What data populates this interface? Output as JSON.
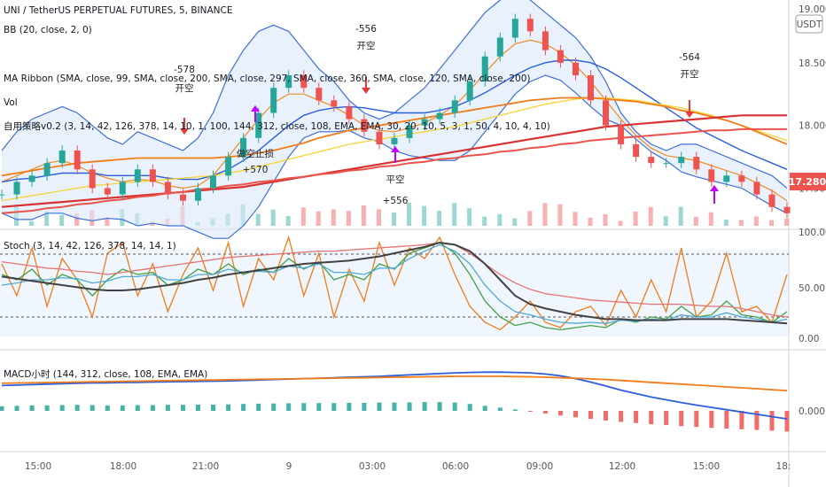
{
  "chart_data": [
    {
      "type": "line",
      "pane": "price",
      "title": "UNI / TetherUS PERPETUAL FUTURES, 5, BINANCE",
      "indicators": [
        "BB (20, close, 2, 0)",
        "MA Ribbon (SMA, close, 99, SMA, close, 200, SMA, close, 297, SMA, close, 360, SMA, close, 120, SMA, close, 200)",
        "Vol",
        "自用策略v0.2 (3, 14, 42, 126, 378, 14, 10, 1, 100, 144, 312, close, 108, EMA, EMA, 30, 20, 10, 5, 3, 1, 50, 4, 10, 4, 10)"
      ],
      "currency": "USDT",
      "ylim": [
        17.2,
        19.0
      ],
      "y_ticks": [
        17.5,
        18.0,
        18.5
      ],
      "y_top_label": "19.000",
      "last_price": "17.280",
      "x_ticks": [
        "15:00",
        "18:00",
        "21:00",
        "9",
        "03:00",
        "06:00",
        "09:00",
        "12:00",
        "15:00",
        "18:"
      ],
      "price_close": [
        17.45,
        17.55,
        17.6,
        17.7,
        17.8,
        17.65,
        17.5,
        17.45,
        17.55,
        17.65,
        17.55,
        17.45,
        17.4,
        17.5,
        17.6,
        17.75,
        17.9,
        18.1,
        18.3,
        18.4,
        18.3,
        18.2,
        18.15,
        18.05,
        17.95,
        17.85,
        17.9,
        18.0,
        18.05,
        18.1,
        18.2,
        18.35,
        18.55,
        18.7,
        18.85,
        18.75,
        18.6,
        18.5,
        18.4,
        18.2,
        18.0,
        17.85,
        17.75,
        17.7,
        17.7,
        17.75,
        17.65,
        17.55,
        17.6,
        17.55,
        17.45,
        17.35,
        17.3
      ],
      "series": [
        {
          "name": "BB upper",
          "values": [
            17.8,
            17.95,
            18.05,
            18.1,
            18.15,
            18.1,
            18.0,
            17.9,
            17.85,
            17.95,
            17.9,
            17.85,
            17.8,
            17.9,
            18.1,
            18.4,
            18.6,
            18.75,
            18.8,
            18.75,
            18.6,
            18.45,
            18.35,
            18.2,
            18.1,
            18.05,
            18.1,
            18.2,
            18.3,
            18.45,
            18.6,
            18.75,
            18.9,
            19.0,
            19.05,
            19.0,
            18.9,
            18.8,
            18.7,
            18.55,
            18.35,
            18.1,
            17.95,
            17.85,
            17.8,
            17.85,
            17.85,
            17.8,
            17.75,
            17.7,
            17.65,
            17.6,
            17.5
          ]
        },
        {
          "name": "BB basis",
          "values": [
            17.55,
            17.6,
            17.65,
            17.7,
            17.72,
            17.68,
            17.62,
            17.58,
            17.55,
            17.57,
            17.56,
            17.52,
            17.5,
            17.52,
            17.6,
            17.75,
            17.9,
            18.05,
            18.18,
            18.25,
            18.25,
            18.2,
            18.15,
            18.08,
            18.0,
            17.96,
            17.95,
            17.98,
            18.02,
            18.08,
            18.16,
            18.28,
            18.42,
            18.55,
            18.65,
            18.68,
            18.65,
            18.58,
            18.48,
            18.35,
            18.2,
            18.05,
            17.92,
            17.82,
            17.76,
            17.74,
            17.72,
            17.68,
            17.64,
            17.6,
            17.54,
            17.48,
            17.4
          ]
        },
        {
          "name": "BB lower",
          "values": [
            17.3,
            17.25,
            17.25,
            17.3,
            17.3,
            17.26,
            17.24,
            17.26,
            17.25,
            17.2,
            17.22,
            17.2,
            17.2,
            17.15,
            17.1,
            17.1,
            17.2,
            17.35,
            17.55,
            17.75,
            17.9,
            17.95,
            17.95,
            17.96,
            17.9,
            17.87,
            17.8,
            17.76,
            17.74,
            17.72,
            17.72,
            17.8,
            17.95,
            18.1,
            18.25,
            18.35,
            18.4,
            18.36,
            18.26,
            18.15,
            18.05,
            18.0,
            17.89,
            17.79,
            17.72,
            17.63,
            17.59,
            17.56,
            17.53,
            17.5,
            17.43,
            17.36,
            17.3
          ]
        },
        {
          "name": "SMA 99",
          "values": [
            17.55,
            17.57,
            17.58,
            17.6,
            17.62,
            17.62,
            17.62,
            17.6,
            17.6,
            17.6,
            17.6,
            17.58,
            17.57,
            17.57,
            17.6,
            17.65,
            17.72,
            17.8,
            17.9,
            18.0,
            18.08,
            18.12,
            18.14,
            18.15,
            18.14,
            18.12,
            18.1,
            18.1,
            18.1,
            18.12,
            18.15,
            18.2,
            18.26,
            18.33,
            18.4,
            18.46,
            18.5,
            18.52,
            18.52,
            18.5,
            18.45,
            18.38,
            18.3,
            18.22,
            18.14,
            18.06,
            17.98,
            17.92,
            17.86,
            17.8,
            17.75,
            17.7,
            17.65
          ]
        },
        {
          "name": "SMA 200",
          "values": [
            17.4,
            17.42,
            17.44,
            17.46,
            17.48,
            17.5,
            17.52,
            17.53,
            17.54,
            17.55,
            17.56,
            17.57,
            17.58,
            17.59,
            17.6,
            17.62,
            17.64,
            17.67,
            17.7,
            17.73,
            17.76,
            17.79,
            17.82,
            17.85,
            17.87,
            17.89,
            17.91,
            17.93,
            17.95,
            17.97,
            17.99,
            18.02,
            18.05,
            18.08,
            18.11,
            18.14,
            18.17,
            18.19,
            18.21,
            18.22,
            18.22,
            18.21,
            18.2,
            18.18,
            18.16,
            18.14,
            18.11,
            18.08,
            18.04,
            18.0,
            17.96,
            17.92,
            17.88
          ]
        },
        {
          "name": "SMA 297",
          "values": [
            17.6,
            17.62,
            17.64,
            17.66,
            17.68,
            17.7,
            17.71,
            17.72,
            17.73,
            17.74,
            17.74,
            17.74,
            17.74,
            17.74,
            17.74,
            17.75,
            17.76,
            17.78,
            17.8,
            17.83,
            17.86,
            17.9,
            17.93,
            17.96,
            17.98,
            18.0,
            18.02,
            18.04,
            18.06,
            18.08,
            18.1,
            18.12,
            18.14,
            18.16,
            18.18,
            18.2,
            18.21,
            18.22,
            18.22,
            18.22,
            18.21,
            18.2,
            18.19,
            18.17,
            18.15,
            18.12,
            18.1,
            18.07,
            18.04,
            18.0,
            17.95,
            17.9,
            17.85
          ]
        },
        {
          "name": "SMA 360",
          "values": [
            17.35,
            17.36,
            17.37,
            17.38,
            17.39,
            17.4,
            17.41,
            17.42,
            17.43,
            17.44,
            17.45,
            17.46,
            17.47,
            17.48,
            17.49,
            17.5,
            17.51,
            17.53,
            17.55,
            17.57,
            17.59,
            17.61,
            17.63,
            17.65,
            17.67,
            17.69,
            17.71,
            17.73,
            17.75,
            17.77,
            17.79,
            17.81,
            17.83,
            17.85,
            17.87,
            17.89,
            17.91,
            17.93,
            17.95,
            17.97,
            17.99,
            18.0,
            18.01,
            18.02,
            18.03,
            18.04,
            18.05,
            18.06,
            18.07,
            18.08,
            18.08,
            18.08,
            18.08
          ]
        },
        {
          "name": "SMA 120",
          "values": [
            17.3,
            17.31,
            17.32,
            17.34,
            17.35,
            17.37,
            17.38,
            17.4,
            17.41,
            17.43,
            17.44,
            17.46,
            17.47,
            17.49,
            17.5,
            17.52,
            17.53,
            17.55,
            17.56,
            17.58,
            17.59,
            17.61,
            17.62,
            17.64,
            17.65,
            17.67,
            17.68,
            17.7,
            17.71,
            17.73,
            17.74,
            17.76,
            17.77,
            17.79,
            17.8,
            17.82,
            17.83,
            17.85,
            17.86,
            17.88,
            17.89,
            17.9,
            17.91,
            17.92,
            17.93,
            17.94,
            17.95,
            17.96,
            17.96,
            17.97,
            17.97,
            17.97,
            17.97
          ]
        }
      ],
      "annotations": [
        {
          "text": "-578",
          "sub": "开空"
        },
        {
          "text": "做空止损",
          "sub": "+570"
        },
        {
          "text": "-556",
          "sub": "开空"
        },
        {
          "text": "平空",
          "sub": "+556"
        },
        {
          "text": "-564",
          "sub": "开空"
        }
      ]
    },
    {
      "type": "line",
      "pane": "stoch",
      "title": "Stoch (3, 14, 42, 126, 378, 14, 14, 1)",
      "ylim": [
        0,
        100
      ],
      "y_ticks": [
        "100.00",
        "50.00",
        "0.00"
      ],
      "series": [
        {
          "name": "fast",
          "values": [
            70,
            40,
            85,
            30,
            75,
            55,
            20,
            80,
            90,
            40,
            70,
            25,
            60,
            85,
            45,
            90,
            30,
            75,
            55,
            95,
            40,
            80,
            20,
            65,
            35,
            90,
            50,
            85,
            75,
            95,
            60,
            30,
            15,
            8,
            20,
            35,
            15,
            10,
            25,
            30,
            12,
            45,
            20,
            55,
            25,
            85,
            20,
            35,
            80,
            25,
            30,
            15,
            60
          ]
        },
        {
          "name": "medium",
          "values": [
            60,
            55,
            65,
            50,
            60,
            55,
            40,
            55,
            65,
            60,
            62,
            50,
            55,
            65,
            60,
            70,
            60,
            65,
            62,
            75,
            65,
            72,
            55,
            60,
            55,
            70,
            65,
            80,
            85,
            90,
            80,
            60,
            35,
            20,
            12,
            15,
            10,
            8,
            10,
            12,
            10,
            18,
            15,
            20,
            18,
            30,
            20,
            22,
            35,
            22,
            20,
            15,
            25
          ]
        },
        {
          "name": "slow",
          "values": [
            50,
            52,
            55,
            55,
            57,
            56,
            52,
            54,
            58,
            58,
            60,
            55,
            55,
            60,
            60,
            65,
            62,
            63,
            62,
            68,
            66,
            70,
            62,
            62,
            60,
            66,
            66,
            75,
            82,
            88,
            82,
            70,
            50,
            35,
            25,
            22,
            18,
            15,
            14,
            15,
            14,
            17,
            16,
            18,
            17,
            22,
            20,
            20,
            24,
            20,
            18,
            15,
            18
          ]
        },
        {
          "name": "long",
          "values": [
            72,
            70,
            68,
            66,
            65,
            63,
            62,
            60,
            62,
            64,
            66,
            68,
            70,
            72,
            74,
            76,
            77,
            78,
            79,
            80,
            81,
            82,
            82,
            83,
            84,
            85,
            86,
            87,
            88,
            90,
            88,
            80,
            70,
            60,
            52,
            46,
            42,
            40,
            38,
            36,
            35,
            34,
            33,
            32,
            32,
            32,
            31,
            30,
            30,
            28,
            25,
            22,
            20
          ]
        },
        {
          "name": "longest",
          "values": [
            58,
            56,
            54,
            52,
            50,
            48,
            46,
            45,
            45,
            46,
            48,
            50,
            52,
            55,
            57,
            60,
            62,
            64,
            66,
            68,
            70,
            71,
            72,
            73,
            75,
            77,
            80,
            83,
            86,
            90,
            88,
            82,
            70,
            55,
            40,
            32,
            28,
            25,
            22,
            20,
            18,
            18,
            17,
            17,
            17,
            18,
            18,
            18,
            18,
            17,
            16,
            15,
            14
          ]
        }
      ]
    },
    {
      "type": "line",
      "pane": "macd",
      "title": "MACD小时 (144, 312, close, 108, EMA, EMA)",
      "y_ticks": [
        "0.000"
      ],
      "series": [
        {
          "name": "MACD",
          "values": [
            0.11,
            0.112,
            0.114,
            0.116,
            0.118,
            0.12,
            0.121,
            0.122,
            0.123,
            0.124,
            0.125,
            0.126,
            0.127,
            0.128,
            0.129,
            0.13,
            0.132,
            0.134,
            0.136,
            0.138,
            0.14,
            0.142,
            0.144,
            0.146,
            0.148,
            0.15,
            0.153,
            0.156,
            0.159,
            0.162,
            0.165,
            0.167,
            0.168,
            0.168,
            0.167,
            0.165,
            0.16,
            0.152,
            0.14,
            0.125,
            0.108,
            0.09,
            0.075,
            0.06,
            0.048,
            0.036,
            0.025,
            0.015,
            0.005,
            -0.005,
            -0.015,
            -0.025,
            -0.035
          ]
        },
        {
          "name": "Signal",
          "values": [
            0.12,
            0.121,
            0.122,
            0.123,
            0.124,
            0.125,
            0.126,
            0.127,
            0.128,
            0.129,
            0.13,
            0.131,
            0.132,
            0.133,
            0.134,
            0.135,
            0.136,
            0.137,
            0.138,
            0.139,
            0.14,
            0.141,
            0.142,
            0.143,
            0.144,
            0.145,
            0.146,
            0.147,
            0.148,
            0.149,
            0.15,
            0.15,
            0.15,
            0.15,
            0.149,
            0.148,
            0.146,
            0.144,
            0.142,
            0.139,
            0.136,
            0.132,
            0.128,
            0.124,
            0.12,
            0.116,
            0.112,
            0.108,
            0.104,
            0.1,
            0.096,
            0.092,
            0.088
          ]
        },
        {
          "name": "Histogram",
          "values": [
            0.02,
            0.022,
            0.024,
            0.024,
            0.025,
            0.026,
            0.025,
            0.024,
            0.024,
            0.025,
            0.025,
            0.026,
            0.026,
            0.027,
            0.027,
            0.028,
            0.03,
            0.031,
            0.032,
            0.033,
            0.034,
            0.034,
            0.034,
            0.035,
            0.035,
            0.036,
            0.036,
            0.037,
            0.038,
            0.038,
            0.036,
            0.03,
            0.022,
            0.014,
            0.006,
            -0.004,
            -0.012,
            -0.02,
            -0.028,
            -0.035,
            -0.042,
            -0.048,
            -0.053,
            -0.058,
            -0.062,
            -0.066,
            -0.07,
            -0.074,
            -0.077,
            -0.08,
            -0.083,
            -0.086,
            -0.09
          ]
        }
      ]
    }
  ]
}
